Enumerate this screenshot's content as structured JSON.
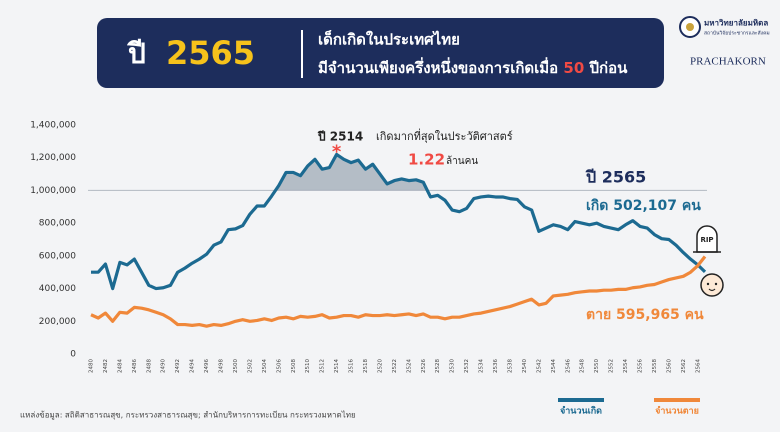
{
  "header": {
    "year_prefix": "ปี",
    "year": "2565",
    "line1": "เด็กเกิดในประเทศไทย",
    "line2_parts": [
      "มีจำนวนเพียงครึ่งหนึ่งของการเกิดเมื่อ",
      "50",
      "ปีก่อน"
    ]
  },
  "logos": {
    "university": "มหาวิทยาลัยมหิดล",
    "institute": "สถาบันวิจัยประชากรและสังคม",
    "brand": "PRACHAKORN"
  },
  "chart_data": {
    "type": "line",
    "x": [
      2480,
      2481,
      2482,
      2483,
      2484,
      2485,
      2486,
      2487,
      2488,
      2489,
      2490,
      2491,
      2492,
      2493,
      2494,
      2495,
      2496,
      2497,
      2498,
      2499,
      2500,
      2501,
      2502,
      2503,
      2504,
      2505,
      2506,
      2507,
      2508,
      2509,
      2510,
      2511,
      2512,
      2513,
      2514,
      2515,
      2516,
      2517,
      2518,
      2519,
      2520,
      2521,
      2522,
      2523,
      2524,
      2525,
      2526,
      2527,
      2528,
      2529,
      2530,
      2531,
      2532,
      2533,
      2534,
      2535,
      2536,
      2537,
      2538,
      2539,
      2540,
      2541,
      2542,
      2543,
      2544,
      2545,
      2546,
      2547,
      2548,
      2549,
      2550,
      2551,
      2552,
      2553,
      2554,
      2555,
      2556,
      2557,
      2558,
      2559,
      2560,
      2561,
      2562,
      2563,
      2564,
      2565
    ],
    "series": [
      {
        "name": "จำนวนเกิด",
        "color": "#1c6a91",
        "values": [
          500000,
          500000,
          550000,
          400000,
          560000,
          545000,
          580000,
          500000,
          420000,
          400000,
          405000,
          420000,
          500000,
          525000,
          555000,
          580000,
          610000,
          665000,
          685000,
          760000,
          765000,
          785000,
          855000,
          905000,
          905000,
          965000,
          1030000,
          1110000,
          1110000,
          1090000,
          1150000,
          1190000,
          1130000,
          1140000,
          1220000,
          1190000,
          1170000,
          1185000,
          1130000,
          1160000,
          1100000,
          1040000,
          1060000,
          1070000,
          1060000,
          1065000,
          1050000,
          960000,
          970000,
          940000,
          880000,
          870000,
          890000,
          950000,
          960000,
          965000,
          960000,
          960000,
          950000,
          945000,
          900000,
          880000,
          750000,
          770000,
          790000,
          780000,
          760000,
          810000,
          800000,
          790000,
          800000,
          780000,
          770000,
          760000,
          790000,
          815000,
          780000,
          770000,
          730000,
          705000,
          700000,
          665000,
          620000,
          580000,
          545000,
          502107
        ]
      },
      {
        "name": "จำนวนตาย",
        "color": "#f0883a",
        "values": [
          240000,
          220000,
          250000,
          200000,
          255000,
          250000,
          285000,
          280000,
          270000,
          255000,
          240000,
          215000,
          180000,
          180000,
          175000,
          180000,
          170000,
          180000,
          175000,
          185000,
          200000,
          210000,
          200000,
          205000,
          215000,
          205000,
          220000,
          225000,
          215000,
          230000,
          225000,
          230000,
          240000,
          220000,
          225000,
          235000,
          235000,
          225000,
          240000,
          235000,
          235000,
          240000,
          235000,
          240000,
          245000,
          235000,
          245000,
          225000,
          225000,
          215000,
          225000,
          225000,
          235000,
          245000,
          250000,
          260000,
          270000,
          280000,
          290000,
          305000,
          320000,
          335000,
          300000,
          310000,
          355000,
          360000,
          365000,
          375000,
          380000,
          385000,
          385000,
          390000,
          390000,
          395000,
          395000,
          405000,
          410000,
          420000,
          425000,
          440000,
          455000,
          465000,
          475000,
          500000,
          540000,
          595965
        ]
      }
    ],
    "xlim": [
      2480,
      2565
    ],
    "xticks": [
      2480,
      2482,
      2484,
      2486,
      2488,
      2490,
      2492,
      2494,
      2496,
      2498,
      2500,
      2502,
      2504,
      2506,
      2508,
      2510,
      2512,
      2514,
      2516,
      2518,
      2520,
      2522,
      2524,
      2526,
      2528,
      2530,
      2532,
      2534,
      2536,
      2538,
      2540,
      2542,
      2544,
      2546,
      2548,
      2550,
      2552,
      2554,
      2556,
      2558,
      2560,
      2562,
      2564
    ],
    "ylim": [
      0,
      1400000
    ],
    "yticks": [
      0,
      {
        "value": 200000,
        "label": "200,000"
      },
      {
        "value": 400000,
        "label": "400,000"
      },
      {
        "value": 600000,
        "label": "600,000"
      },
      {
        "value": 800000,
        "label": "800,000"
      },
      {
        "value": 1000000,
        "label": "1,000,000"
      },
      {
        "value": 1200000,
        "label": "1,200,000"
      },
      {
        "value": 1400000,
        "label": "1,400,000"
      }
    ],
    "reference_line": 1000000,
    "legend": "bottom-right",
    "annotations": {
      "peak_year": "ปี 2514",
      "peak_text": "เกิดมากที่สุดในประวัติศาสตร์",
      "peak_value": "1.22",
      "peak_unit": "ล้านคน",
      "latest_year": "ปี 2565",
      "latest_births": "เกิด 502,107 คน",
      "latest_deaths": "ตาย 595,965 คน",
      "rip": "RIP"
    },
    "source": "แหล่งข้อมูล: สถิติสาธารณสุข, กระทรวงสาธารณสุข; สำนักบริหารการทะเบียน กระทรวงมหาดไทย"
  }
}
